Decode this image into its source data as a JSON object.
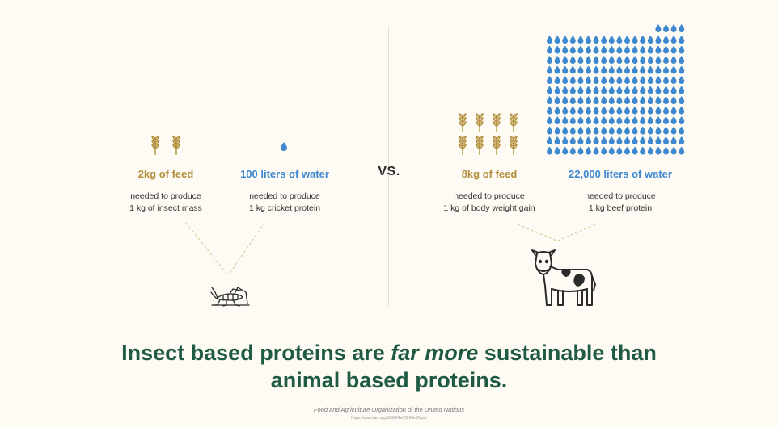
{
  "colors": {
    "background": "#fdfbf3",
    "feed": "#b38f3c",
    "water": "#3d88cf",
    "headline": "#1f5a43"
  },
  "vs_label": "VS.",
  "insect": {
    "feed": {
      "icon": "wheat-icon",
      "count": 2,
      "value": "2kg of feed",
      "line1": "needed to produce",
      "line2": "1 kg of insect mass"
    },
    "water": {
      "icon": "water-drop-icon",
      "count": 1,
      "value": "100 liters of water",
      "line1": "needed to produce",
      "line2": "1 kg cricket protein"
    },
    "animal_icon": "cricket-icon"
  },
  "cattle": {
    "feed": {
      "icon": "wheat-icon",
      "count": 8,
      "value": "8kg of feed",
      "line1": "needed to produce",
      "line2": "1 kg of body weight gain"
    },
    "water": {
      "icon": "water-drop-icon",
      "count": 220,
      "value": "22,000 liters of water",
      "line1": "needed to produce",
      "line2": "1 kg beef protein"
    },
    "animal_icon": "cow-icon"
  },
  "headline": {
    "before": "Insect based proteins are ",
    "emphasis": "far more",
    "after": " sustainable than",
    "line2": "animal based proteins."
  },
  "source": {
    "name": "Food and Agriculture Organization of the United Nations",
    "url": "https://www.fao.org/3/i3264e/i3264e00.pdf"
  }
}
